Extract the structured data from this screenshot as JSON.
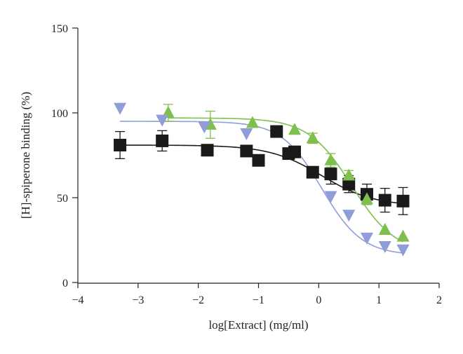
{
  "chart_data": {
    "type": "scatter",
    "title": "",
    "xlabel": "log[Extract] (mg/ml)",
    "ylabel": "[H]-spiperone binding (%)",
    "xlim": [
      -4,
      2
    ],
    "ylim": [
      0,
      150
    ],
    "xticks": [
      -4,
      -3,
      -2,
      -1,
      0,
      1,
      2
    ],
    "yticks": [
      0,
      50,
      100,
      150
    ],
    "xtick_labels": [
      "−4",
      "−3",
      "−2",
      "−1",
      "0",
      "1",
      "2"
    ],
    "ytick_labels": [
      "0",
      "50",
      "100",
      "150"
    ],
    "grid": false,
    "series": [
      {
        "marker": "square",
        "color": "#1a1a1a",
        "x": [
          -3.3,
          -2.6,
          -1.85,
          -1.2,
          -1.0,
          -0.7,
          -0.5,
          -0.4,
          -0.1,
          0.2,
          0.5,
          0.8,
          1.1,
          1.4
        ],
        "y": [
          81,
          83.5,
          78,
          77.5,
          72,
          89,
          76,
          77,
          65,
          64,
          58,
          52,
          48.5,
          48
        ],
        "error": [
          8,
          6,
          0,
          0,
          0,
          0,
          0,
          0,
          0,
          6,
          5,
          6,
          7,
          8
        ],
        "fit": {
          "top": 81,
          "bottom": 45,
          "logEC50": 0.05,
          "hill": 1
        }
      },
      {
        "marker": "triangle-up",
        "color": "#7fbf4d",
        "x": [
          -2.5,
          -1.8,
          -1.1,
          -0.4,
          -0.1,
          0.2,
          0.5,
          0.8,
          1.1,
          1.4
        ],
        "y": [
          100,
          93,
          94,
          90,
          85,
          72,
          63,
          49,
          31,
          27
        ],
        "error": [
          5,
          8,
          0,
          0,
          3,
          4,
          3,
          3,
          0,
          0
        ],
        "fit": {
          "top": 97,
          "bottom": 17,
          "logEC50": 0.55,
          "hill": 1.2
        }
      },
      {
        "marker": "triangle-down",
        "color": "#8f9dd8",
        "x": [
          -3.3,
          -2.6,
          -1.9,
          -1.2,
          0.2,
          0.5,
          0.8,
          1.1,
          1.4
        ],
        "y": [
          103,
          96,
          92,
          88,
          51,
          40,
          26.5,
          21.5,
          19.5
        ],
        "error": [
          0,
          0,
          0,
          0,
          0,
          0,
          0,
          0,
          0
        ],
        "fit": {
          "top": 95,
          "bottom": 16,
          "logEC50": 0.05,
          "hill": 1.3
        }
      }
    ]
  }
}
